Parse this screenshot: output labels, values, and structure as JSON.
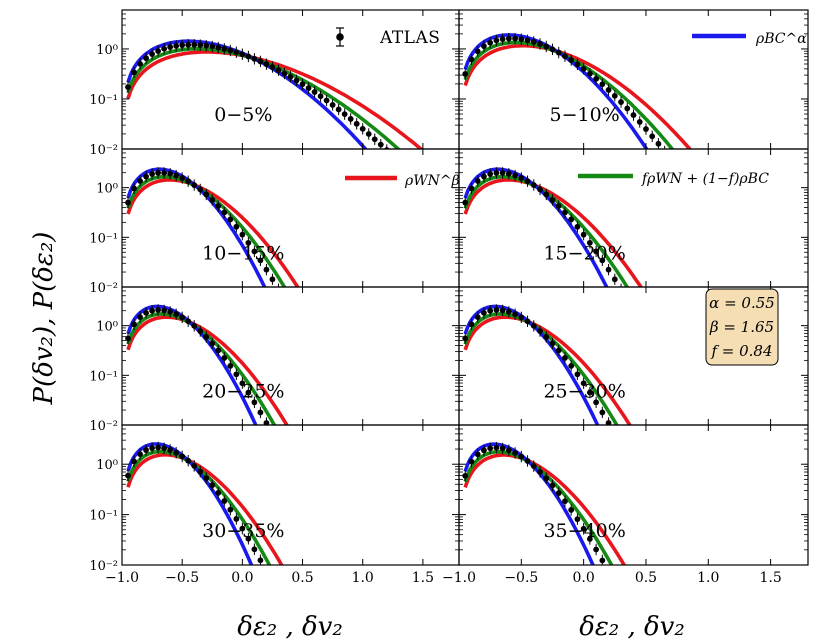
{
  "chart_data": {
    "type": "line",
    "ylabel": "P(δv₂), P(δε₂)",
    "xlabel": "δε₂ , δv₂",
    "yscale": "log",
    "xlim_left": [
      -1.0,
      1.8
    ],
    "xlim_right": [
      -1.0,
      1.8
    ],
    "ylim": [
      0.01,
      6
    ],
    "x_ticks": [
      -1.0,
      -0.5,
      0.0,
      0.5,
      1.0,
      1.5
    ],
    "x_tick_labels": [
      "−1.0",
      "−0.5",
      "0.0",
      "0.5",
      "1.0",
      "1.5"
    ],
    "y_ticks": [
      0.01,
      0.1,
      1
    ],
    "y_tick_labels": [
      "10⁻²",
      "10⁻¹",
      "10⁰"
    ],
    "legend": {
      "atlas": "ATLAS",
      "bc": "ρBC^α",
      "wn": "ρWN^β",
      "mix": "fρWN + (1−f)ρBC"
    },
    "params": [
      "α = 0.55",
      "β = 1.65",
      "f = 0.84"
    ],
    "series_colors": {
      "atlas": "#000000",
      "wn": "#e8161c",
      "bc": "#1a1aee",
      "mix": "#148a14"
    },
    "panels": [
      {
        "label": "0−5%",
        "s": 0.55,
        "z": -0.75
      },
      {
        "label": "5−10%",
        "s": 0.4,
        "z": -0.45
      },
      {
        "label": "10−15%",
        "s": 0.31,
        "z": 0.0
      },
      {
        "label": "15−20%",
        "s": 0.31,
        "z": 0.0
      },
      {
        "label": "20−25%",
        "s": 0.29,
        "z": 0.3
      },
      {
        "label": "25−30%",
        "s": 0.29,
        "z": 0.3
      },
      {
        "label": "30−35%",
        "s": 0.28,
        "z": 0.3
      },
      {
        "label": "35−40%",
        "s": 0.28,
        "z": 0.4
      }
    ]
  }
}
